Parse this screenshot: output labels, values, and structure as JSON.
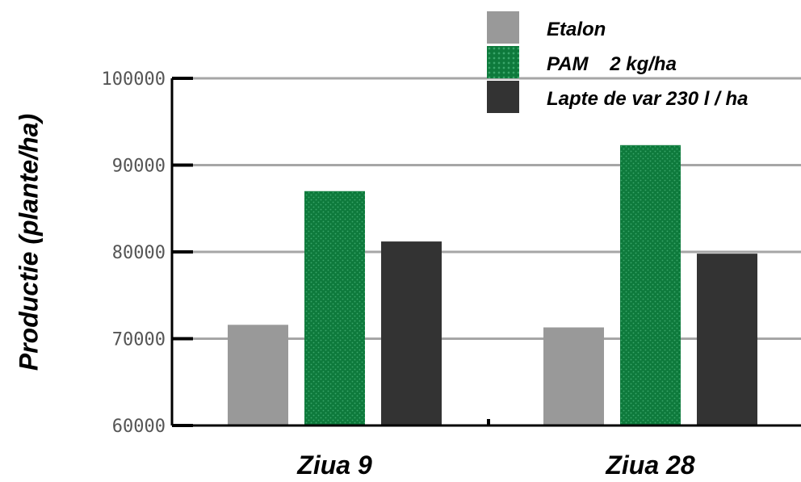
{
  "chart_data": {
    "type": "bar",
    "categories": [
      "Ziua 9",
      "Ziua 28"
    ],
    "series": [
      {
        "name": "Etalon",
        "color": "#999999",
        "values": [
          71600,
          71300
        ]
      },
      {
        "name": "PAM    2 kg/ha",
        "color": "#0e7a3c",
        "values": [
          87000,
          92300
        ]
      },
      {
        "name": "Lapte de var 230 l / ha",
        "color": "#333333",
        "values": [
          81200,
          79800
        ]
      }
    ],
    "ylabel": "Productie (plante/ha)",
    "yticks": [
      "60000",
      "70000",
      "80000",
      "90000",
      "100000"
    ],
    "ylim": [
      60000,
      100000
    ],
    "grid": true,
    "legend_position": "top-right"
  }
}
